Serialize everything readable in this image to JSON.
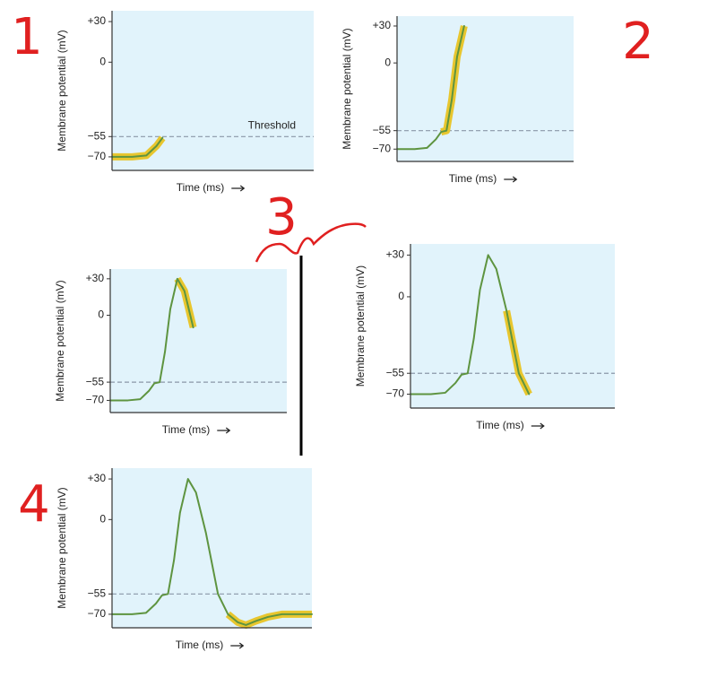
{
  "chart_data": [
    {
      "type": "line",
      "annotation": "1",
      "xlabel": "Time (ms)",
      "ylabel": "Membrane potential (mV)",
      "threshold": {
        "value": -55,
        "label": "Threshold"
      },
      "x": [
        0,
        1,
        1.7,
        2.2,
        2.5
      ],
      "series": [
        {
          "color": "#e8c62e",
          "values": [
            -70,
            -70,
            -69,
            -62,
            -56
          ]
        },
        {
          "color": "#5e9440",
          "values": [
            -70,
            -70,
            -69,
            -62,
            -56
          ]
        }
      ],
      "xlim": [
        0,
        10
      ],
      "ylim": [
        -80,
        38
      ],
      "yticks": [
        {
          "value": 30,
          "label": "+30"
        },
        0,
        {
          "value": -55,
          "label": "−55"
        },
        {
          "value": -70,
          "label": "−70"
        }
      ]
    },
    {
      "type": "line",
      "annotation": "2",
      "xlabel": "Time (ms)",
      "ylabel": "Membrane potential (mV)",
      "threshold": -55,
      "x": [
        0,
        1,
        1.7,
        2.2,
        2.5,
        2.8,
        3.1,
        3.4,
        3.8
      ],
      "series": [
        {
          "color": "#e8c62e",
          "values": [
            null,
            null,
            null,
            null,
            -56,
            -55,
            -30,
            5,
            30
          ]
        },
        {
          "color": "#5e9440",
          "values": [
            -70,
            -70,
            -69,
            -62,
            -56,
            -55,
            -30,
            5,
            30
          ]
        }
      ],
      "xlim": [
        0,
        10
      ],
      "ylim": [
        -80,
        38
      ],
      "yticks": [
        {
          "value": 30,
          "label": "+30"
        },
        0,
        {
          "value": -55,
          "label": "−55"
        },
        {
          "value": -70,
          "label": "−70"
        }
      ]
    },
    {
      "type": "line",
      "annotation": "3",
      "xlabel": "Time (ms)",
      "ylabel": "Membrane potential (mV)",
      "threshold": -55,
      "x": [
        0,
        1,
        1.7,
        2.2,
        2.5,
        2.8,
        3.1,
        3.4,
        3.8,
        4.2,
        4.7
      ],
      "series": [
        {
          "color": "#e8c62e",
          "values": [
            null,
            null,
            null,
            null,
            null,
            null,
            null,
            null,
            30,
            20,
            -10
          ]
        },
        {
          "color": "#5e9440",
          "values": [
            -70,
            -70,
            -69,
            -62,
            -56,
            -55,
            -30,
            5,
            30,
            20,
            -10
          ]
        }
      ],
      "xlim": [
        0,
        10
      ],
      "ylim": [
        -80,
        38
      ],
      "yticks": [
        {
          "value": 30,
          "label": "+30"
        },
        0,
        {
          "value": -55,
          "label": "−55"
        },
        {
          "value": -70,
          "label": "−70"
        }
      ]
    },
    {
      "type": "line",
      "xlabel": "Time (ms)",
      "ylabel": "Membrane potential (mV)",
      "threshold": -55,
      "x": [
        0,
        1,
        1.7,
        2.2,
        2.5,
        2.8,
        3.1,
        3.4,
        3.8,
        4.2,
        4.7,
        5.3,
        5.8
      ],
      "series": [
        {
          "color": "#e8c62e",
          "values": [
            null,
            null,
            null,
            null,
            null,
            null,
            null,
            null,
            null,
            null,
            -10,
            -55,
            -70
          ]
        },
        {
          "color": "#5e9440",
          "values": [
            -70,
            -70,
            -69,
            -62,
            -56,
            -55,
            -30,
            5,
            30,
            20,
            -10,
            -55,
            -70
          ]
        }
      ],
      "xlim": [
        0,
        10
      ],
      "ylim": [
        -80,
        38
      ],
      "yticks": [
        {
          "value": 30,
          "label": "+30"
        },
        0,
        {
          "value": -55,
          "label": "−55"
        },
        {
          "value": -70,
          "label": "−70"
        }
      ]
    },
    {
      "type": "line",
      "annotation": "4",
      "xlabel": "Time (ms)",
      "ylabel": "Membrane potential (mV)",
      "threshold": -55,
      "x": [
        0,
        1,
        1.7,
        2.2,
        2.5,
        2.8,
        3.1,
        3.4,
        3.8,
        4.2,
        4.7,
        5.3,
        5.8,
        6.3,
        6.7,
        7.2,
        7.8,
        8.5,
        10
      ],
      "series": [
        {
          "color": "#e8c62e",
          "values": [
            null,
            null,
            null,
            null,
            null,
            null,
            null,
            null,
            null,
            null,
            null,
            null,
            -70,
            -76,
            -78,
            -75,
            -72,
            -70,
            -70
          ]
        },
        {
          "color": "#5e9440",
          "values": [
            -70,
            -70,
            -69,
            -62,
            -56,
            -55,
            -30,
            5,
            30,
            20,
            -10,
            -55,
            -70,
            -76,
            -78,
            -75,
            -72,
            -70,
            -70
          ]
        }
      ],
      "xlim": [
        0,
        10
      ],
      "ylim": [
        -80,
        38
      ],
      "yticks": [
        {
          "value": 30,
          "label": "+30"
        },
        0,
        {
          "value": -55,
          "label": "−55"
        },
        {
          "value": -70,
          "label": "−70"
        }
      ]
    }
  ]
}
